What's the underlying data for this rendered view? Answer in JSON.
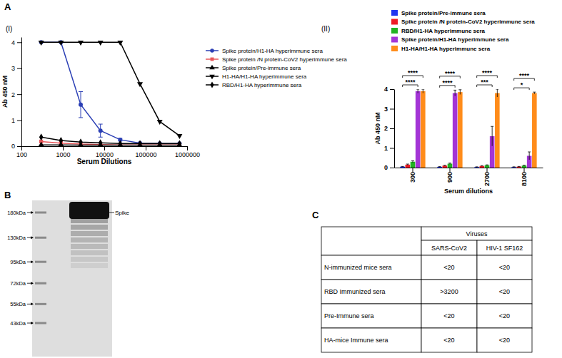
{
  "panel_labels": [
    "A",
    "B",
    "C"
  ],
  "chart_data": [
    {
      "type": "line",
      "panel": "(I)",
      "x_label": "Serum Dilutions",
      "y_label": "Ab 450 nM",
      "log": "x",
      "legend": "right",
      "x": [
        300,
        900,
        2700,
        8100,
        24300,
        72900,
        218700,
        656100
      ],
      "xlim": [
        100,
        1000000
      ],
      "xticks": [
        100,
        1000,
        10000,
        100000,
        1000000
      ],
      "ylim": [
        0,
        4.2
      ],
      "yticks": [
        0,
        1,
        2,
        3,
        4
      ],
      "series": [
        {
          "name": "Spike protein/H1-HA hyperimmune sera",
          "color": "#2b3fb5",
          "marker": "circle",
          "values": [
            4,
            4,
            1.6,
            0.6,
            0.25,
            0.12,
            0.1,
            0.1
          ],
          "errors": [
            null,
            null,
            0.5,
            0.25,
            0.05,
            null,
            null,
            null
          ]
        },
        {
          "name": "Spike protein /N protein-CoV2 hyperimmune sera",
          "color": "#e8575a",
          "marker": "square",
          "values": [
            0.18,
            0.12,
            0.08,
            0.06,
            0.05,
            0.05,
            0.05,
            0.05
          ]
        },
        {
          "name": "Spike protein/Pre-immune sera",
          "color": "#000000",
          "marker": "triangle",
          "values": [
            0.05,
            0.05,
            0.04,
            0.04,
            0.04,
            0.04,
            0.04,
            0.04
          ]
        },
        {
          "name": "H1-HA/H1-HA hyperimmune sera",
          "color": "#000000",
          "marker": "triangle-down",
          "values": [
            4,
            4,
            4,
            4,
            4,
            2.4,
            0.95,
            0.4
          ]
        },
        {
          "name": "RBD/H1-HA hyperimmune sera",
          "color": "#000000",
          "marker": "diamond",
          "values": [
            0.35,
            0.22,
            0.16,
            0.13,
            0.1,
            0.1,
            0.1,
            0.1
          ]
        }
      ]
    },
    {
      "type": "bar",
      "panel": "(II)",
      "x_label": "Serum dilutions",
      "y_label": "Ab 450 nM",
      "legend": "top",
      "categories": [
        "300",
        "900",
        "2700",
        "8100"
      ],
      "ylim": [
        0,
        4
      ],
      "yticks": [
        0,
        1,
        2,
        3,
        4
      ],
      "series": [
        {
          "name": "Spike protein/Pre-immune sera",
          "color": "#1f35f0",
          "values": [
            0.05,
            0.04,
            0.03,
            0.03
          ],
          "errors": [
            0.01,
            0.01,
            0.01,
            0.01
          ]
        },
        {
          "name": "Spike protein /N protein-CoV2 hyperimmune sera",
          "color": "#ee1c25",
          "values": [
            0.15,
            0.1,
            0.08,
            0.05
          ],
          "errors": [
            0.03,
            0.02,
            0.02,
            0.01
          ]
        },
        {
          "name": "RBD/H1-HA hyperimmune sera",
          "color": "#22b322",
          "values": [
            0.3,
            0.2,
            0.12,
            0.1
          ],
          "errors": [
            0.05,
            0.03,
            0.02,
            0.02
          ]
        },
        {
          "name": "Spike protein/H1-HA hyperimmune sera",
          "color": "#a335d6",
          "values": [
            3.9,
            3.8,
            1.6,
            0.6
          ],
          "errors": [
            0.1,
            0.15,
            0.5,
            0.2
          ]
        },
        {
          "name": "H1-HA/H1-HA hyperimmune sera",
          "color": "#ff8c1a",
          "values": [
            3.9,
            3.85,
            3.8,
            3.8
          ],
          "errors": [
            0.1,
            0.12,
            0.2,
            0.05
          ]
        }
      ],
      "annotations": [
        {
          "category": "300",
          "from": "Spike protein/Pre-immune sera",
          "to": "Spike protein/H1-HA hyperimmune sera",
          "text": "****"
        },
        {
          "category": "300",
          "from": "Spike protein/Pre-immune sera",
          "to": "H1-HA/H1-HA hyperimmune sera",
          "text": "****"
        },
        {
          "category": "900",
          "from": "Spike protein/Pre-immune sera",
          "to": "Spike protein/H1-HA hyperimmune sera",
          "text": "****"
        },
        {
          "category": "900",
          "from": "Spike protein/Pre-immune sera",
          "to": "H1-HA/H1-HA hyperimmune sera",
          "text": "****"
        },
        {
          "category": "2700",
          "from": "Spike protein/Pre-immune sera",
          "to": "Spike protein/H1-HA hyperimmune sera",
          "text": "***"
        },
        {
          "category": "2700",
          "from": "Spike protein/Pre-immune sera",
          "to": "H1-HA/H1-HA hyperimmune sera",
          "text": "****"
        },
        {
          "category": "8100",
          "from": "Spike protein/Pre-immune sera",
          "to": "Spike protein/H1-HA hyperimmune sera",
          "text": "*"
        },
        {
          "category": "8100",
          "from": "Spike protein/Pre-immune sera",
          "to": "H1-HA/H1-HA hyperimmune sera",
          "text": "****"
        }
      ]
    }
  ],
  "blot": {
    "markers": [
      {
        "value": 180,
        "label": "180kDa"
      },
      {
        "value": 130,
        "label": "130kDa"
      },
      {
        "value": 95,
        "label": "95kDa"
      },
      {
        "value": 72,
        "label": "72kDa"
      },
      {
        "value": 55,
        "label": "55kDa"
      },
      {
        "value": 43,
        "label": "43kDa"
      }
    ],
    "band": {
      "label": "Spike",
      "value": 180
    }
  },
  "table": {
    "group_header": "Viruses",
    "columns": [
      "SARS-CoV2",
      "HIV-1 SF162"
    ],
    "rows": [
      {
        "label": "N-immunized mice sera",
        "cells": [
          "<20",
          "<20"
        ]
      },
      {
        "label": "RBD Immunized sera",
        "cells": [
          ">3200",
          "<20"
        ]
      },
      {
        "label": "Pre-Immune sera",
        "cells": [
          "<20",
          "<20"
        ]
      },
      {
        "label": "HA-mice Immune sera",
        "cells": [
          "<20",
          "<20"
        ]
      }
    ]
  }
}
